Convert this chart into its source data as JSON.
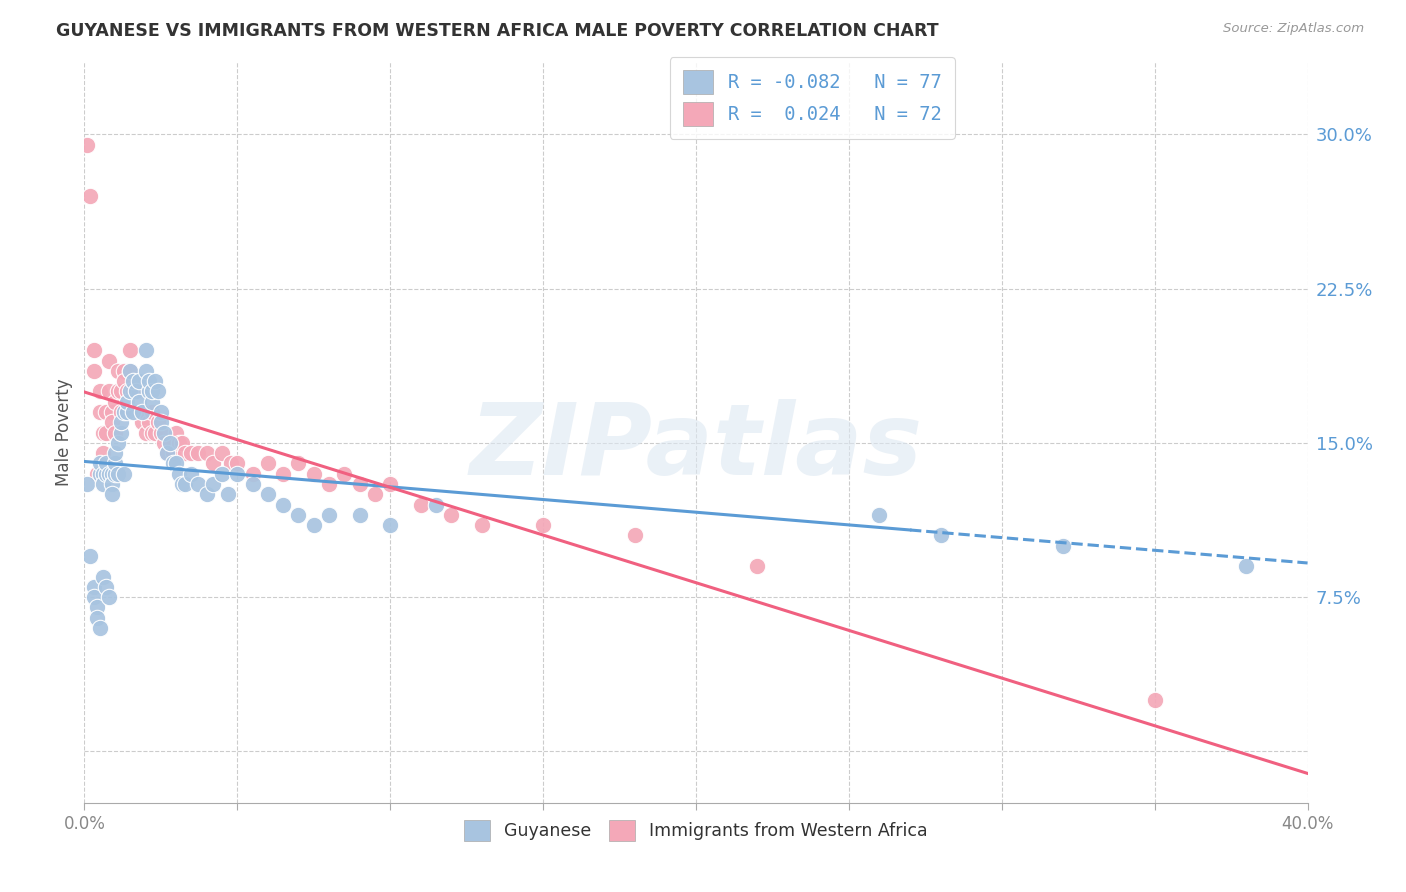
{
  "title": "GUYANESE VS IMMIGRANTS FROM WESTERN AFRICA MALE POVERTY CORRELATION CHART",
  "source": "Source: ZipAtlas.com",
  "ylabel": "Male Poverty",
  "yticks": [
    0.0,
    0.075,
    0.15,
    0.225,
    0.3
  ],
  "ytick_labels": [
    "",
    "7.5%",
    "15.0%",
    "22.5%",
    "30.0%"
  ],
  "xlim": [
    0.0,
    0.4
  ],
  "ylim": [
    -0.025,
    0.335
  ],
  "r_guyanese": -0.082,
  "n_guyanese": 77,
  "r_western_africa": 0.024,
  "n_western_africa": 72,
  "color_guyanese": "#a8c4e0",
  "color_western_africa": "#f4a8b8",
  "line_color_guyanese": "#5b9bd5",
  "line_color_western_africa": "#f06080",
  "watermark": "ZIPatlas",
  "guyanese_x": [
    0.001,
    0.002,
    0.003,
    0.003,
    0.004,
    0.004,
    0.005,
    0.005,
    0.005,
    0.006,
    0.006,
    0.006,
    0.007,
    0.007,
    0.007,
    0.008,
    0.008,
    0.009,
    0.009,
    0.009,
    0.01,
    0.01,
    0.01,
    0.011,
    0.011,
    0.012,
    0.012,
    0.013,
    0.013,
    0.014,
    0.014,
    0.015,
    0.015,
    0.016,
    0.016,
    0.017,
    0.018,
    0.018,
    0.019,
    0.02,
    0.02,
    0.021,
    0.021,
    0.022,
    0.022,
    0.023,
    0.024,
    0.025,
    0.025,
    0.026,
    0.027,
    0.028,
    0.029,
    0.03,
    0.031,
    0.032,
    0.033,
    0.035,
    0.037,
    0.04,
    0.042,
    0.045,
    0.047,
    0.05,
    0.055,
    0.06,
    0.065,
    0.07,
    0.075,
    0.08,
    0.09,
    0.1,
    0.115,
    0.26,
    0.28,
    0.32,
    0.38
  ],
  "guyanese_y": [
    0.13,
    0.095,
    0.08,
    0.075,
    0.07,
    0.065,
    0.06,
    0.135,
    0.14,
    0.135,
    0.13,
    0.085,
    0.08,
    0.135,
    0.14,
    0.135,
    0.075,
    0.135,
    0.13,
    0.125,
    0.135,
    0.14,
    0.145,
    0.15,
    0.135,
    0.155,
    0.16,
    0.165,
    0.135,
    0.165,
    0.17,
    0.175,
    0.185,
    0.18,
    0.165,
    0.175,
    0.18,
    0.17,
    0.165,
    0.185,
    0.195,
    0.175,
    0.18,
    0.17,
    0.175,
    0.18,
    0.175,
    0.165,
    0.16,
    0.155,
    0.145,
    0.15,
    0.14,
    0.14,
    0.135,
    0.13,
    0.13,
    0.135,
    0.13,
    0.125,
    0.13,
    0.135,
    0.125,
    0.135,
    0.13,
    0.125,
    0.12,
    0.115,
    0.11,
    0.115,
    0.115,
    0.11,
    0.12,
    0.115,
    0.105,
    0.1,
    0.09
  ],
  "western_africa_x": [
    0.001,
    0.002,
    0.003,
    0.003,
    0.004,
    0.005,
    0.005,
    0.006,
    0.006,
    0.007,
    0.007,
    0.008,
    0.008,
    0.009,
    0.009,
    0.01,
    0.01,
    0.011,
    0.011,
    0.012,
    0.012,
    0.013,
    0.013,
    0.014,
    0.015,
    0.015,
    0.016,
    0.016,
    0.017,
    0.018,
    0.018,
    0.019,
    0.02,
    0.02,
    0.021,
    0.022,
    0.022,
    0.023,
    0.024,
    0.025,
    0.026,
    0.027,
    0.028,
    0.029,
    0.03,
    0.031,
    0.032,
    0.033,
    0.035,
    0.037,
    0.04,
    0.042,
    0.045,
    0.048,
    0.05,
    0.055,
    0.06,
    0.065,
    0.07,
    0.075,
    0.08,
    0.085,
    0.09,
    0.095,
    0.1,
    0.11,
    0.12,
    0.13,
    0.15,
    0.18,
    0.22,
    0.35
  ],
  "western_africa_y": [
    0.295,
    0.27,
    0.195,
    0.185,
    0.135,
    0.175,
    0.165,
    0.155,
    0.145,
    0.165,
    0.155,
    0.19,
    0.175,
    0.165,
    0.16,
    0.17,
    0.155,
    0.185,
    0.175,
    0.175,
    0.165,
    0.185,
    0.18,
    0.175,
    0.195,
    0.185,
    0.175,
    0.165,
    0.175,
    0.175,
    0.165,
    0.16,
    0.155,
    0.165,
    0.16,
    0.155,
    0.165,
    0.155,
    0.16,
    0.155,
    0.15,
    0.145,
    0.15,
    0.145,
    0.155,
    0.15,
    0.15,
    0.145,
    0.145,
    0.145,
    0.145,
    0.14,
    0.145,
    0.14,
    0.14,
    0.135,
    0.14,
    0.135,
    0.14,
    0.135,
    0.13,
    0.135,
    0.13,
    0.125,
    0.13,
    0.12,
    0.115,
    0.11,
    0.11,
    0.105,
    0.09,
    0.025
  ]
}
